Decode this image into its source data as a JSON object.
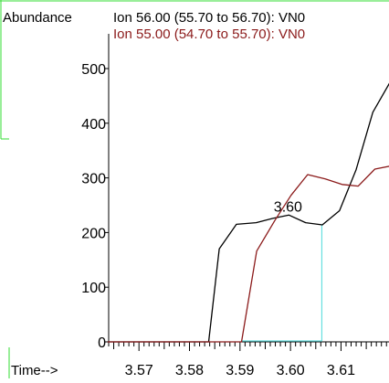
{
  "chart_data": {
    "type": "line",
    "ylabel": "Abundance",
    "xlabel": "Time-->",
    "xlim": [
      3.564,
      3.6195
    ],
    "ylim": [
      0,
      500
    ],
    "x_ticks": [
      {
        "value": 3.57,
        "label": "3.57"
      },
      {
        "value": 3.58,
        "label": "3.58"
      },
      {
        "value": 3.59,
        "label": "3.59"
      },
      {
        "value": 3.6,
        "label": "3.60"
      },
      {
        "value": 3.61,
        "label": "3.61"
      }
    ],
    "y_ticks": [
      {
        "value": 0,
        "label": "0"
      },
      {
        "value": 100,
        "label": "100"
      },
      {
        "value": 200,
        "label": "200"
      },
      {
        "value": 300,
        "label": "300"
      },
      {
        "value": 400,
        "label": "400"
      },
      {
        "value": 500,
        "label": "500"
      }
    ],
    "series": [
      {
        "name": "Ion  56.00 (55.70 to 56.70): VN0",
        "color": "#000000",
        "points": [
          [
            3.5638,
            0
          ],
          [
            3.5838,
            0
          ],
          [
            3.5859,
            170
          ],
          [
            3.5893,
            215
          ],
          [
            3.5932,
            218
          ],
          [
            3.5965,
            226
          ],
          [
            3.5997,
            232
          ],
          [
            3.603,
            218
          ],
          [
            3.6063,
            214
          ],
          [
            3.6097,
            240
          ],
          [
            3.613,
            315
          ],
          [
            3.6163,
            420
          ],
          [
            3.62,
            480
          ]
        ]
      },
      {
        "name": "Ion  55.00 (54.70 to 55.70): VN0",
        "color": "#8b1a1a",
        "points": [
          [
            3.5638,
            0
          ],
          [
            3.5903,
            0
          ],
          [
            3.5933,
            166
          ],
          [
            3.5969,
            222
          ],
          [
            3.6001,
            268
          ],
          [
            3.6034,
            306
          ],
          [
            3.6069,
            298
          ],
          [
            3.6102,
            288
          ],
          [
            3.6134,
            285
          ],
          [
            3.6167,
            316
          ],
          [
            3.62,
            322
          ]
        ]
      }
    ],
    "annotations": [
      {
        "text": "3.60",
        "x": 3.5995,
        "y": 238
      }
    ],
    "marker": {
      "x1": 3.5902,
      "x2": 3.6062,
      "y_top": 214,
      "color": "#66e0e0"
    }
  }
}
